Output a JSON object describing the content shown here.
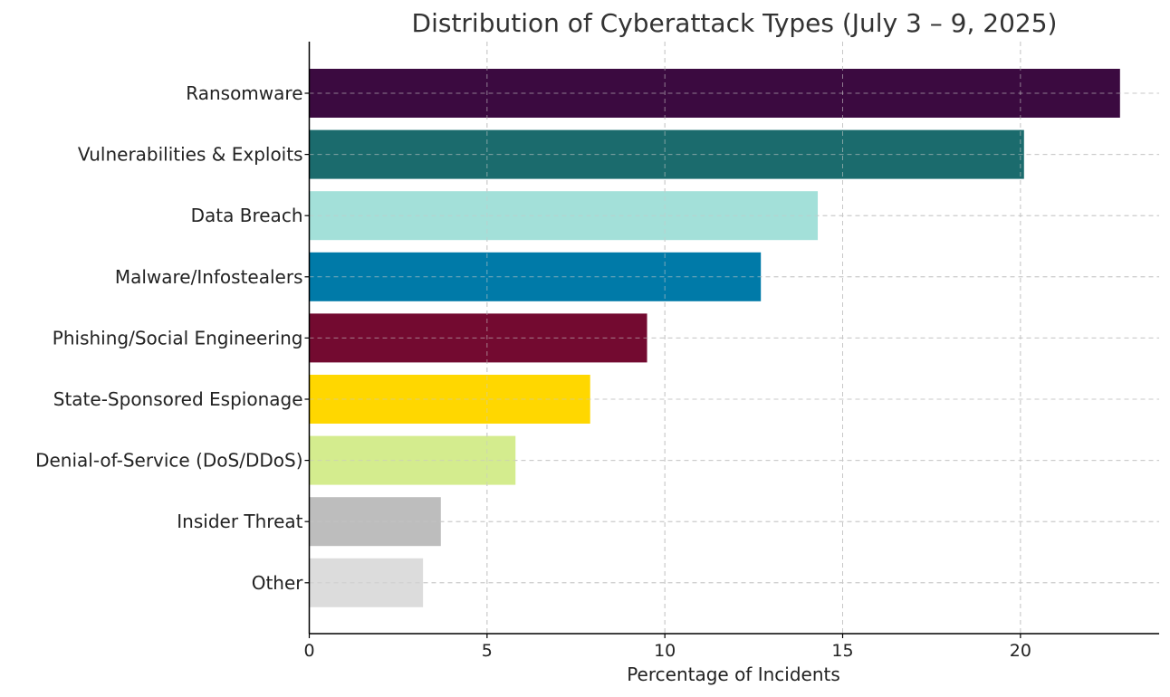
{
  "chart_data": {
    "type": "bar",
    "orientation": "horizontal",
    "title": "Distribution of Cyberattack Types (July 3 – 9, 2025)",
    "xlabel": "Percentage of Incidents",
    "ylabel": "",
    "xlim": [
      0,
      23.9
    ],
    "xticks": [
      0,
      5,
      10,
      15,
      20
    ],
    "grid": true,
    "categories": [
      "Ransomware",
      "Vulnerabilities & Exploits",
      "Data Breach",
      "Malware/Infostealers",
      "Phishing/Social Engineering",
      "State-Sponsored Espionage",
      "Denial-of-Service (DoS/DDoS)",
      "Insider Threat",
      "Other"
    ],
    "values": [
      22.8,
      20.1,
      14.3,
      12.7,
      9.5,
      7.9,
      5.8,
      3.7,
      3.2
    ],
    "colors": [
      "#3b0a40",
      "#1b6b6d",
      "#a3e0d9",
      "#007aa8",
      "#730a30",
      "#ffd700",
      "#d4ec8e",
      "#bdbdbd",
      "#dcdcdc"
    ]
  }
}
